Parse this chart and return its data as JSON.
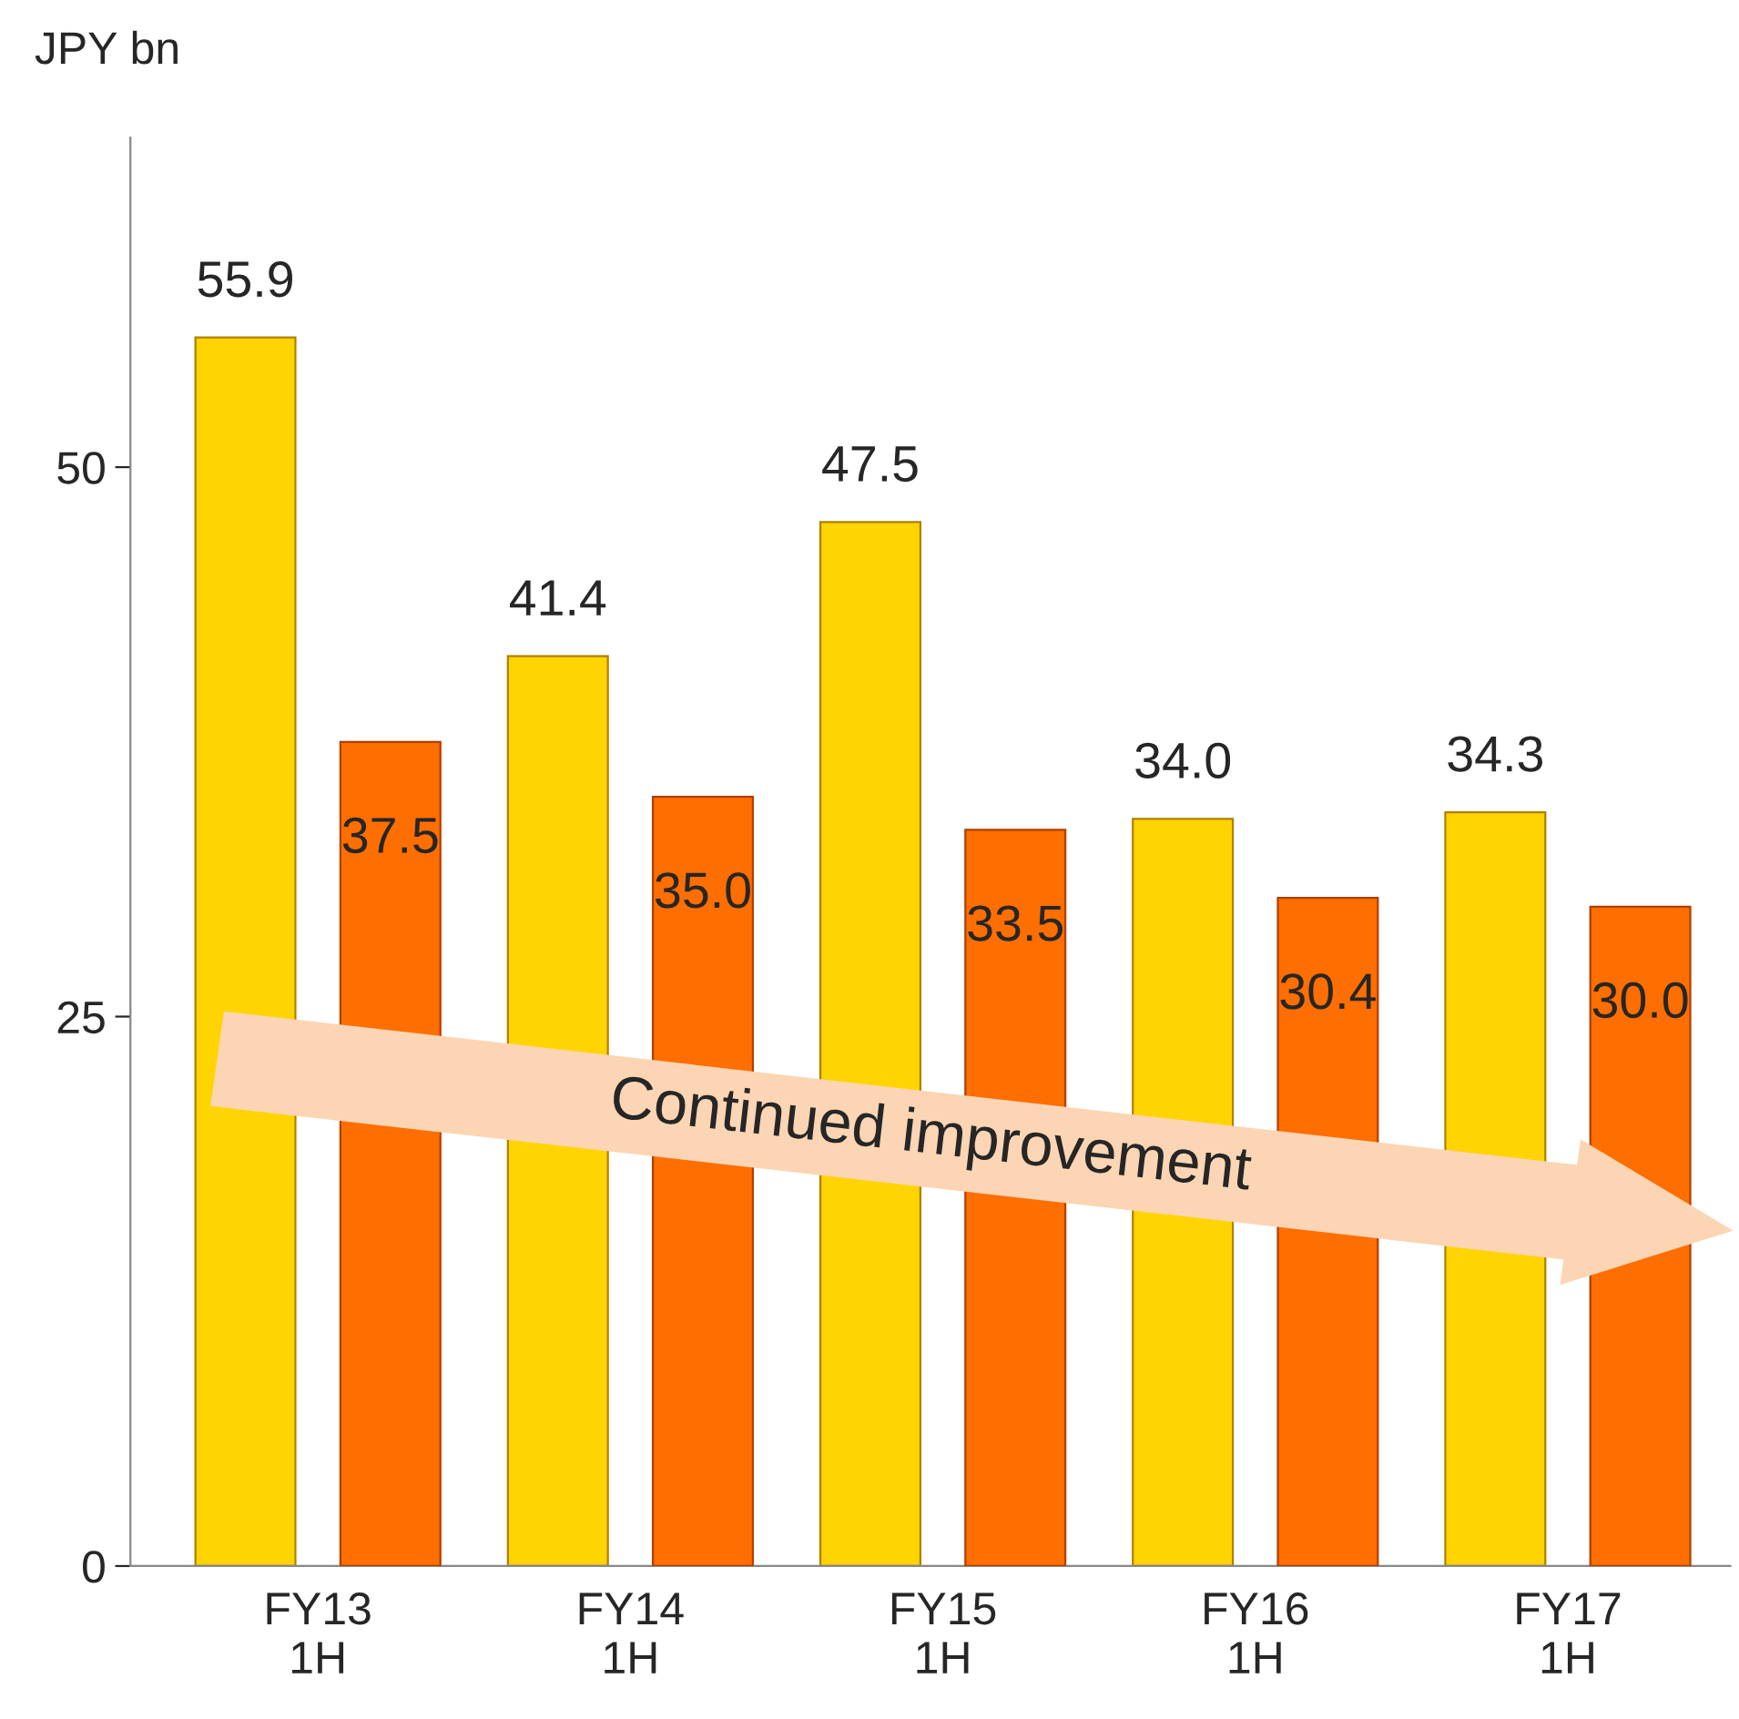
{
  "chart_data": {
    "type": "bar",
    "ylabel": "JPY bn",
    "categories": [
      "FY13\n1H",
      "FY14\n1H",
      "FY15\n1H",
      "FY16\n1H",
      "FY17\n1H"
    ],
    "series": [
      {
        "color": "#ffd400",
        "values": [
          55.9,
          41.4,
          47.5,
          34.0,
          34.3
        ],
        "value_labels": [
          "55.9",
          "41.4",
          "47.5",
          "34.0",
          "34.3"
        ]
      },
      {
        "color": "#ff6e00",
        "values": [
          37.5,
          35.0,
          33.5,
          30.4,
          30.0
        ],
        "value_labels": [
          "37.5",
          "35.0",
          "33.5",
          "30.4",
          "30.0"
        ]
      }
    ],
    "ylim": [
      0,
      65
    ],
    "yticks": [
      0,
      25,
      50
    ],
    "grid": false,
    "legend": false,
    "annotations": [
      "Continued improvement"
    ]
  }
}
